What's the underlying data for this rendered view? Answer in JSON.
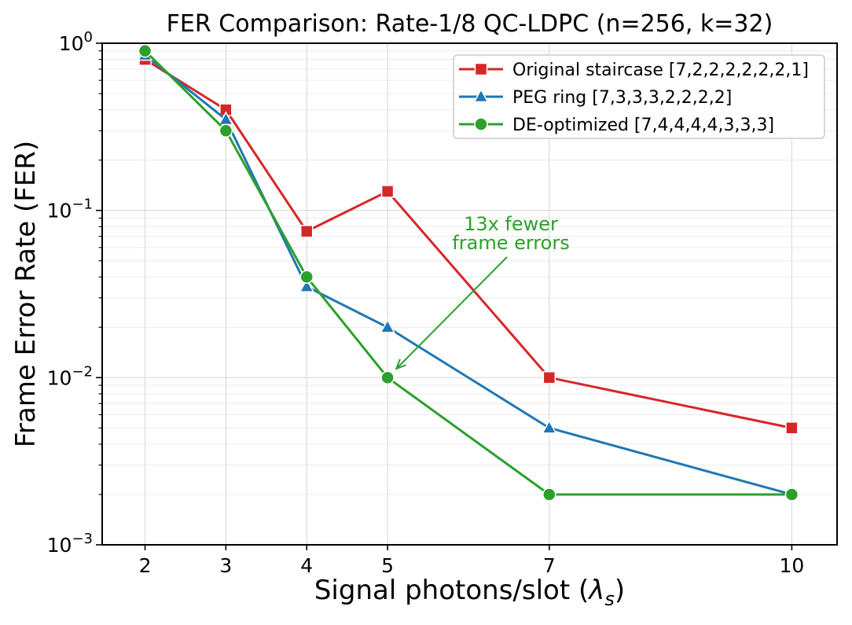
{
  "chart_data": {
    "type": "line",
    "title": "FER Comparison: Rate-1/8 QC-LDPC (n=256, k=32)",
    "xlabel": "Signal photons/slot (λs)",
    "xlabel_parts": {
      "prefix": "Signal photons/slot (",
      "symbol": "λ",
      "subscript": "s",
      "suffix": ")"
    },
    "ylabel": "Frame Error Rate (FER)",
    "x": [
      2,
      3,
      4,
      5,
      7,
      10
    ],
    "xticks": [
      "2",
      "3",
      "4",
      "5",
      "7",
      "10"
    ],
    "xlim": [
      1.47,
      10.56
    ],
    "yscale": "log",
    "ylim": [
      0.001,
      1
    ],
    "ytick_exponents": [
      0,
      -1,
      -2,
      -3
    ],
    "grid": {
      "major": true,
      "minor": true,
      "major_color": "#dcdcdc",
      "minor_color": "#ececec"
    },
    "series": [
      {
        "name": "Original staircase [7,2,2,2,2,2,2,1]",
        "color": "#d62728",
        "marker": "square",
        "values": [
          0.8,
          0.4,
          0.075,
          0.13,
          0.01,
          0.005
        ]
      },
      {
        "name": "PEG ring [7,3,3,3,2,2,2,2]",
        "color": "#1f77b4",
        "marker": "triangle",
        "values": [
          0.85,
          0.35,
          0.035,
          0.02,
          0.005,
          0.002
        ]
      },
      {
        "name": "DE-optimized [7,4,4,4,4,3,3,3]",
        "color": "#2ca02c",
        "marker": "circle",
        "values": [
          0.9,
          0.3,
          0.04,
          0.01,
          0.002,
          0.002
        ]
      }
    ],
    "legend_position": "upper right",
    "annotation": {
      "lines": [
        "13x fewer",
        "frame errors"
      ],
      "color": "#2ca02c",
      "target": {
        "x": 5,
        "y": 0.01
      }
    }
  }
}
